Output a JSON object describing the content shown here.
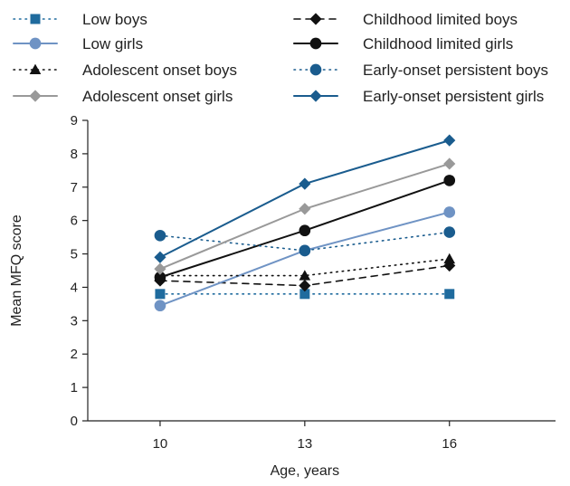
{
  "chart_data": {
    "type": "line",
    "title": "",
    "xlabel": "Age, years",
    "ylabel": "Mean MFQ score",
    "x": [
      10,
      13,
      16
    ],
    "x_tick_labels": [
      "10",
      "13",
      "16"
    ],
    "ylim": [
      0,
      9
    ],
    "y_ticks": [
      0,
      1,
      2,
      3,
      4,
      5,
      6,
      7,
      8,
      9
    ],
    "y_tick_labels": [
      "0",
      "1",
      "2",
      "3",
      "4",
      "5",
      "6",
      "7",
      "8",
      "9"
    ],
    "grid": false,
    "legend_position": "top",
    "series": [
      {
        "name": "Low boys",
        "values": [
          3.8,
          3.8,
          3.8
        ],
        "color": "#1f6b9e",
        "line_style": "dotted",
        "marker": "square"
      },
      {
        "name": "Childhood limited boys",
        "values": [
          4.2,
          4.05,
          4.65
        ],
        "color": "#111111",
        "line_style": "dashed",
        "marker": "diamond"
      },
      {
        "name": "Low girls",
        "values": [
          3.45,
          5.1,
          6.25
        ],
        "color": "#6f93c4",
        "line_style": "solid",
        "marker": "circle"
      },
      {
        "name": "Childhood limited girls",
        "values": [
          4.3,
          5.7,
          7.2
        ],
        "color": "#111111",
        "line_style": "solid",
        "marker": "circle"
      },
      {
        "name": "Adolescent onset boys",
        "values": [
          4.35,
          4.35,
          4.85
        ],
        "color": "#111111",
        "line_style": "dotted",
        "marker": "triangle"
      },
      {
        "name": "Early-onset persistent boys",
        "values": [
          5.55,
          5.1,
          5.65
        ],
        "color": "#1a5c8e",
        "line_style": "dotted",
        "marker": "circle"
      },
      {
        "name": "Adolescent onset girls",
        "values": [
          4.55,
          6.35,
          7.7
        ],
        "color": "#999999",
        "line_style": "solid",
        "marker": "diamond"
      },
      {
        "name": "Early-onset persistent girls",
        "values": [
          4.9,
          7.1,
          8.4
        ],
        "color": "#1a5c8e",
        "line_style": "solid",
        "marker": "diamond"
      }
    ]
  }
}
